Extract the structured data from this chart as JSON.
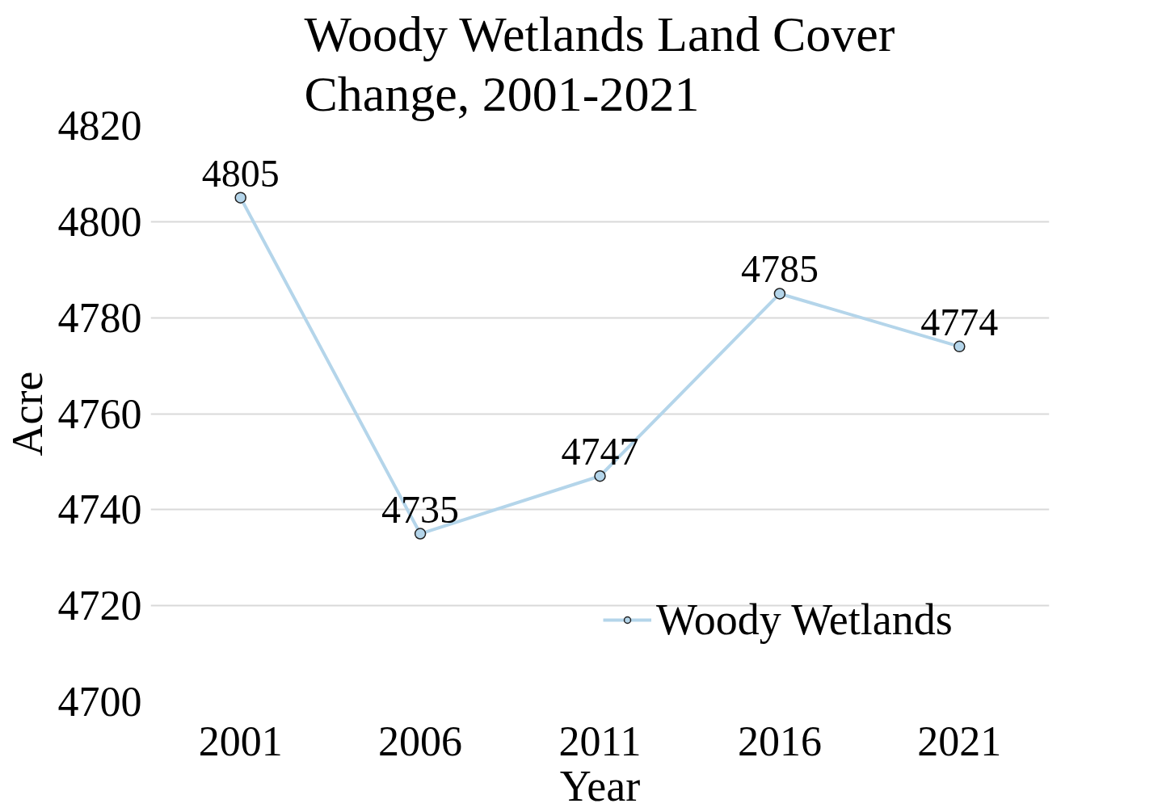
{
  "chart_data": {
    "type": "line",
    "title": "Woody Wetlands Land Cover Change, 2001-2021",
    "xlabel": "Year",
    "ylabel": "Acre",
    "categories": [
      "2001",
      "2006",
      "2011",
      "2016",
      "2021"
    ],
    "series": [
      {
        "name": "Woody Wetlands",
        "color": "#b4d5ea",
        "values": [
          4805,
          4735,
          4747,
          4785,
          4774
        ]
      }
    ],
    "ylim": [
      4700,
      4820
    ],
    "yticks": [
      4700,
      4720,
      4740,
      4760,
      4780,
      4800,
      4820
    ],
    "grid": "y",
    "legend": "right",
    "marker": "circle",
    "line_style": "solid",
    "data_labels": true
  }
}
